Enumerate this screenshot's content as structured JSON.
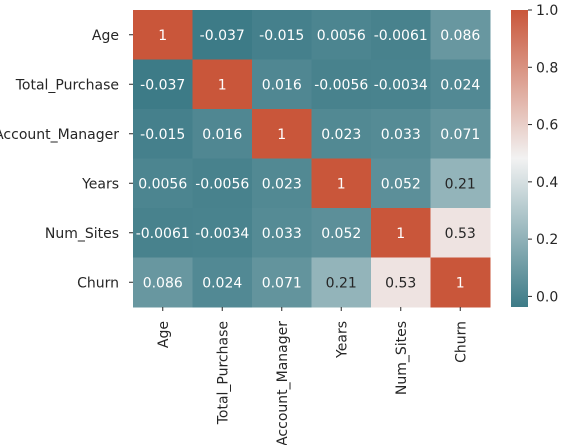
{
  "chart_data": {
    "type": "heatmap",
    "title": "",
    "xlabel": "",
    "ylabel": "",
    "row_labels": [
      "Age",
      "Total_Purchase",
      "Account_Manager",
      "Years",
      "Num_Sites",
      "Churn"
    ],
    "col_labels": [
      "Age",
      "Total_Purchase",
      "Account_Manager",
      "Years",
      "Num_Sites",
      "Churn"
    ],
    "values": [
      [
        1,
        -0.037,
        -0.015,
        0.0056,
        -0.0061,
        0.086
      ],
      [
        -0.037,
        1,
        0.016,
        -0.0056,
        -0.0034,
        0.024
      ],
      [
        -0.015,
        0.016,
        1,
        0.023,
        0.033,
        0.071
      ],
      [
        0.0056,
        -0.0056,
        0.023,
        1,
        0.052,
        0.21
      ],
      [
        -0.0061,
        -0.0034,
        0.033,
        0.052,
        1,
        0.53
      ],
      [
        0.086,
        0.024,
        0.071,
        0.21,
        0.53,
        1
      ]
    ],
    "annotations": [
      [
        "1",
        "-0.037",
        "-0.015",
        "0.0056",
        "-0.0061",
        "0.086"
      ],
      [
        "-0.037",
        "1",
        "0.016",
        "-0.0056",
        "-0.0034",
        "0.024"
      ],
      [
        "-0.015",
        "0.016",
        "1",
        "0.023",
        "0.033",
        "0.071"
      ],
      [
        "0.0056",
        "-0.0056",
        "0.023",
        "1",
        "0.052",
        "0.21"
      ],
      [
        "-0.0061",
        "-0.0034",
        "0.033",
        "0.052",
        "1",
        "0.53"
      ],
      [
        "0.086",
        "0.024",
        "0.071",
        "0.21",
        "0.53",
        "1"
      ]
    ],
    "value_range": [
      -0.037,
      1
    ],
    "colormap": "diverging teal-white-orange",
    "colorbar": {
      "ticks": [
        0.0,
        0.2,
        0.4,
        0.6,
        0.8,
        1.0
      ],
      "tick_labels": [
        "0.0",
        "0.2",
        "0.4",
        "0.6",
        "0.8",
        "1.0"
      ],
      "placement": "right"
    },
    "colors": {
      "low": "#3d7b87",
      "mid": "#f2f2f2",
      "high": "#c9563a",
      "text_dark": "#262626",
      "text_light": "#ffffff"
    }
  }
}
